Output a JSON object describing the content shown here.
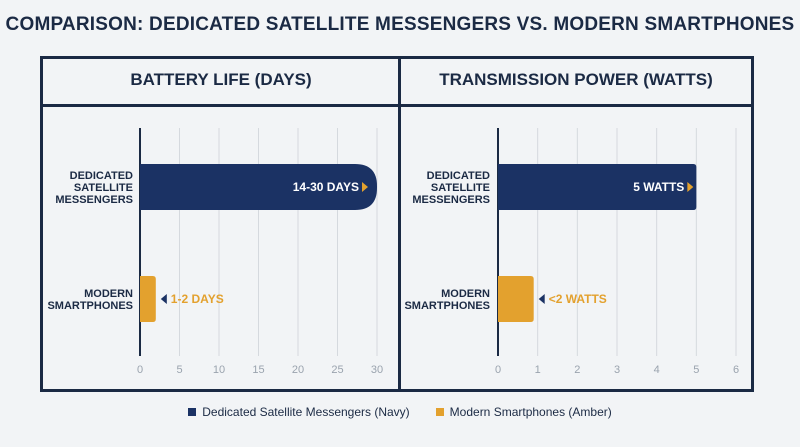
{
  "title": "COMPARISON: DEDICATED SATELLITE MESSENGERS VS. MODERN SMARTPHONES",
  "colors": {
    "navy": "#1b3264",
    "amber": "#e3a12e",
    "frame": "#1b2a44",
    "grid": "#d5d9de",
    "tick": "#9aa3ae"
  },
  "legend": [
    {
      "label": "Dedicated Satellite Messengers (Navy)",
      "color": "#1b3264"
    },
    {
      "label": "Modern Smartphones (Amber)",
      "color": "#e3a12e"
    }
  ],
  "chart_data": [
    {
      "type": "bar",
      "orientation": "horizontal",
      "title": "BATTERY LIFE (DAYS)",
      "categories": [
        "DEDICATED SATELLITE MESSENGERS",
        "MODERN SMARTPHONES"
      ],
      "category_lines": [
        [
          "DEDICATED",
          "SATELLITE",
          "MESSENGERS"
        ],
        [
          "MODERN",
          "SMARTPHONES"
        ]
      ],
      "values": [
        30,
        2
      ],
      "data_labels": [
        "14-30 DAYS",
        "1-2 DAYS"
      ],
      "xlim": [
        0,
        30
      ],
      "ticks": [
        0,
        5,
        10,
        15,
        20,
        25,
        30
      ],
      "grid": true
    },
    {
      "type": "bar",
      "orientation": "horizontal",
      "title": "TRANSMISSION POWER (WATTS)",
      "categories": [
        "DEDICATED SATELLITE MESSENGERS",
        "MODERN SMARTPHONES"
      ],
      "category_lines": [
        [
          "DEDICATED",
          "SATELLITE",
          "MESSENGERS"
        ],
        [
          "MODERN",
          "SMARTPHONES"
        ]
      ],
      "values": [
        5,
        0.9
      ],
      "data_labels": [
        "5 WATTS",
        "<2 WATTS"
      ],
      "xlim": [
        0,
        6
      ],
      "ticks": [
        0,
        1,
        2,
        3,
        4,
        5,
        6
      ],
      "grid": true
    }
  ]
}
